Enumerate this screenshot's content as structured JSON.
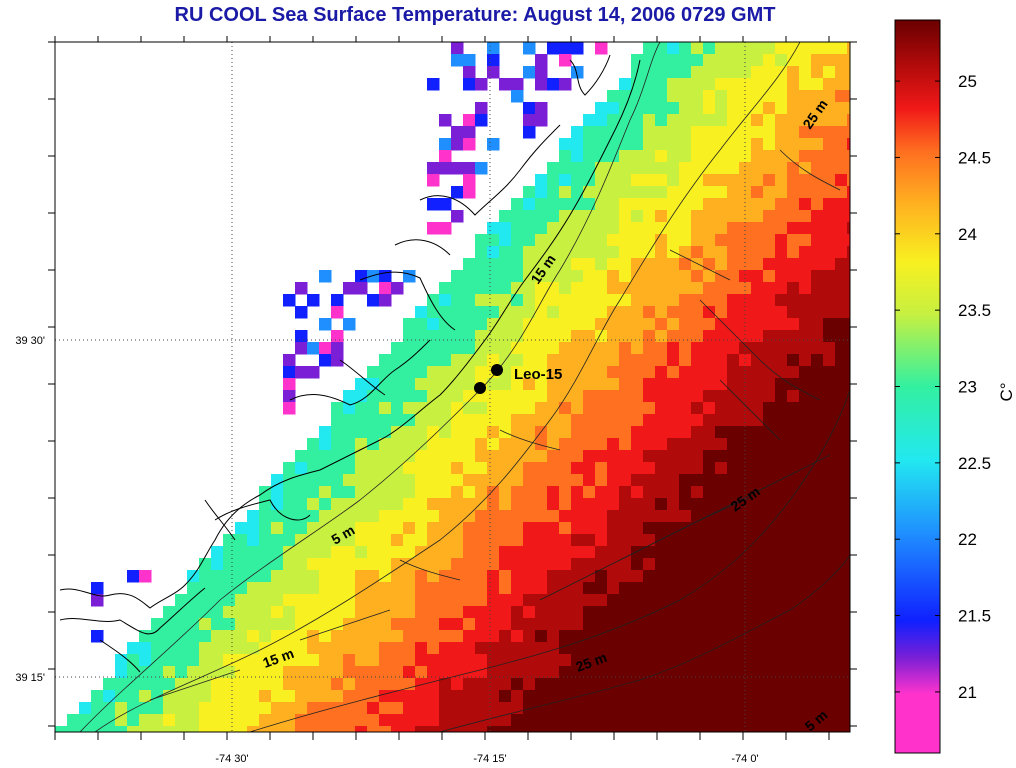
{
  "title": "RU COOL  Sea Surface Temperature:  August 14, 2006 0729 GMT",
  "y_axis": {
    "ticks": [
      {
        "label": "39 30'",
        "value": 39.5
      },
      {
        "label": "39 15'",
        "value": 39.25
      }
    ]
  },
  "x_axis": {
    "ticks": [
      {
        "label": "-74 30'",
        "value": -74.5
      },
      {
        "label": "-74 15'",
        "value": -74.25
      },
      {
        "label": "-74 0'",
        "value": -74.0
      }
    ]
  },
  "stations": [
    {
      "name": "Leo-15"
    }
  ],
  "contour_labels": [
    "25 m",
    "15 m",
    "5 m",
    "15 m",
    "25 m",
    "25 m",
    "5 m"
  ],
  "colorbar": {
    "unit": "C°",
    "min": 20.6,
    "max": 25.4,
    "ticks": [
      {
        "label": "21",
        "value": 21
      },
      {
        "label": "21.5",
        "value": 21.5
      },
      {
        "label": "22",
        "value": 22
      },
      {
        "label": "22.5",
        "value": 22.5
      },
      {
        "label": "23",
        "value": 23
      },
      {
        "label": "23.5",
        "value": 23.5
      },
      {
        "label": "24",
        "value": 24
      },
      {
        "label": "24.5",
        "value": 24.5
      },
      {
        "label": "25",
        "value": 25
      }
    ],
    "colors": [
      "#ff33cc",
      "#7a1fd6",
      "#1020ff",
      "#1f8fff",
      "#22e8f0",
      "#33f0a0",
      "#c8f040",
      "#f8f020",
      "#ffb020",
      "#ff7020",
      "#f01818",
      "#b00a0a",
      "#6a0000"
    ]
  }
}
